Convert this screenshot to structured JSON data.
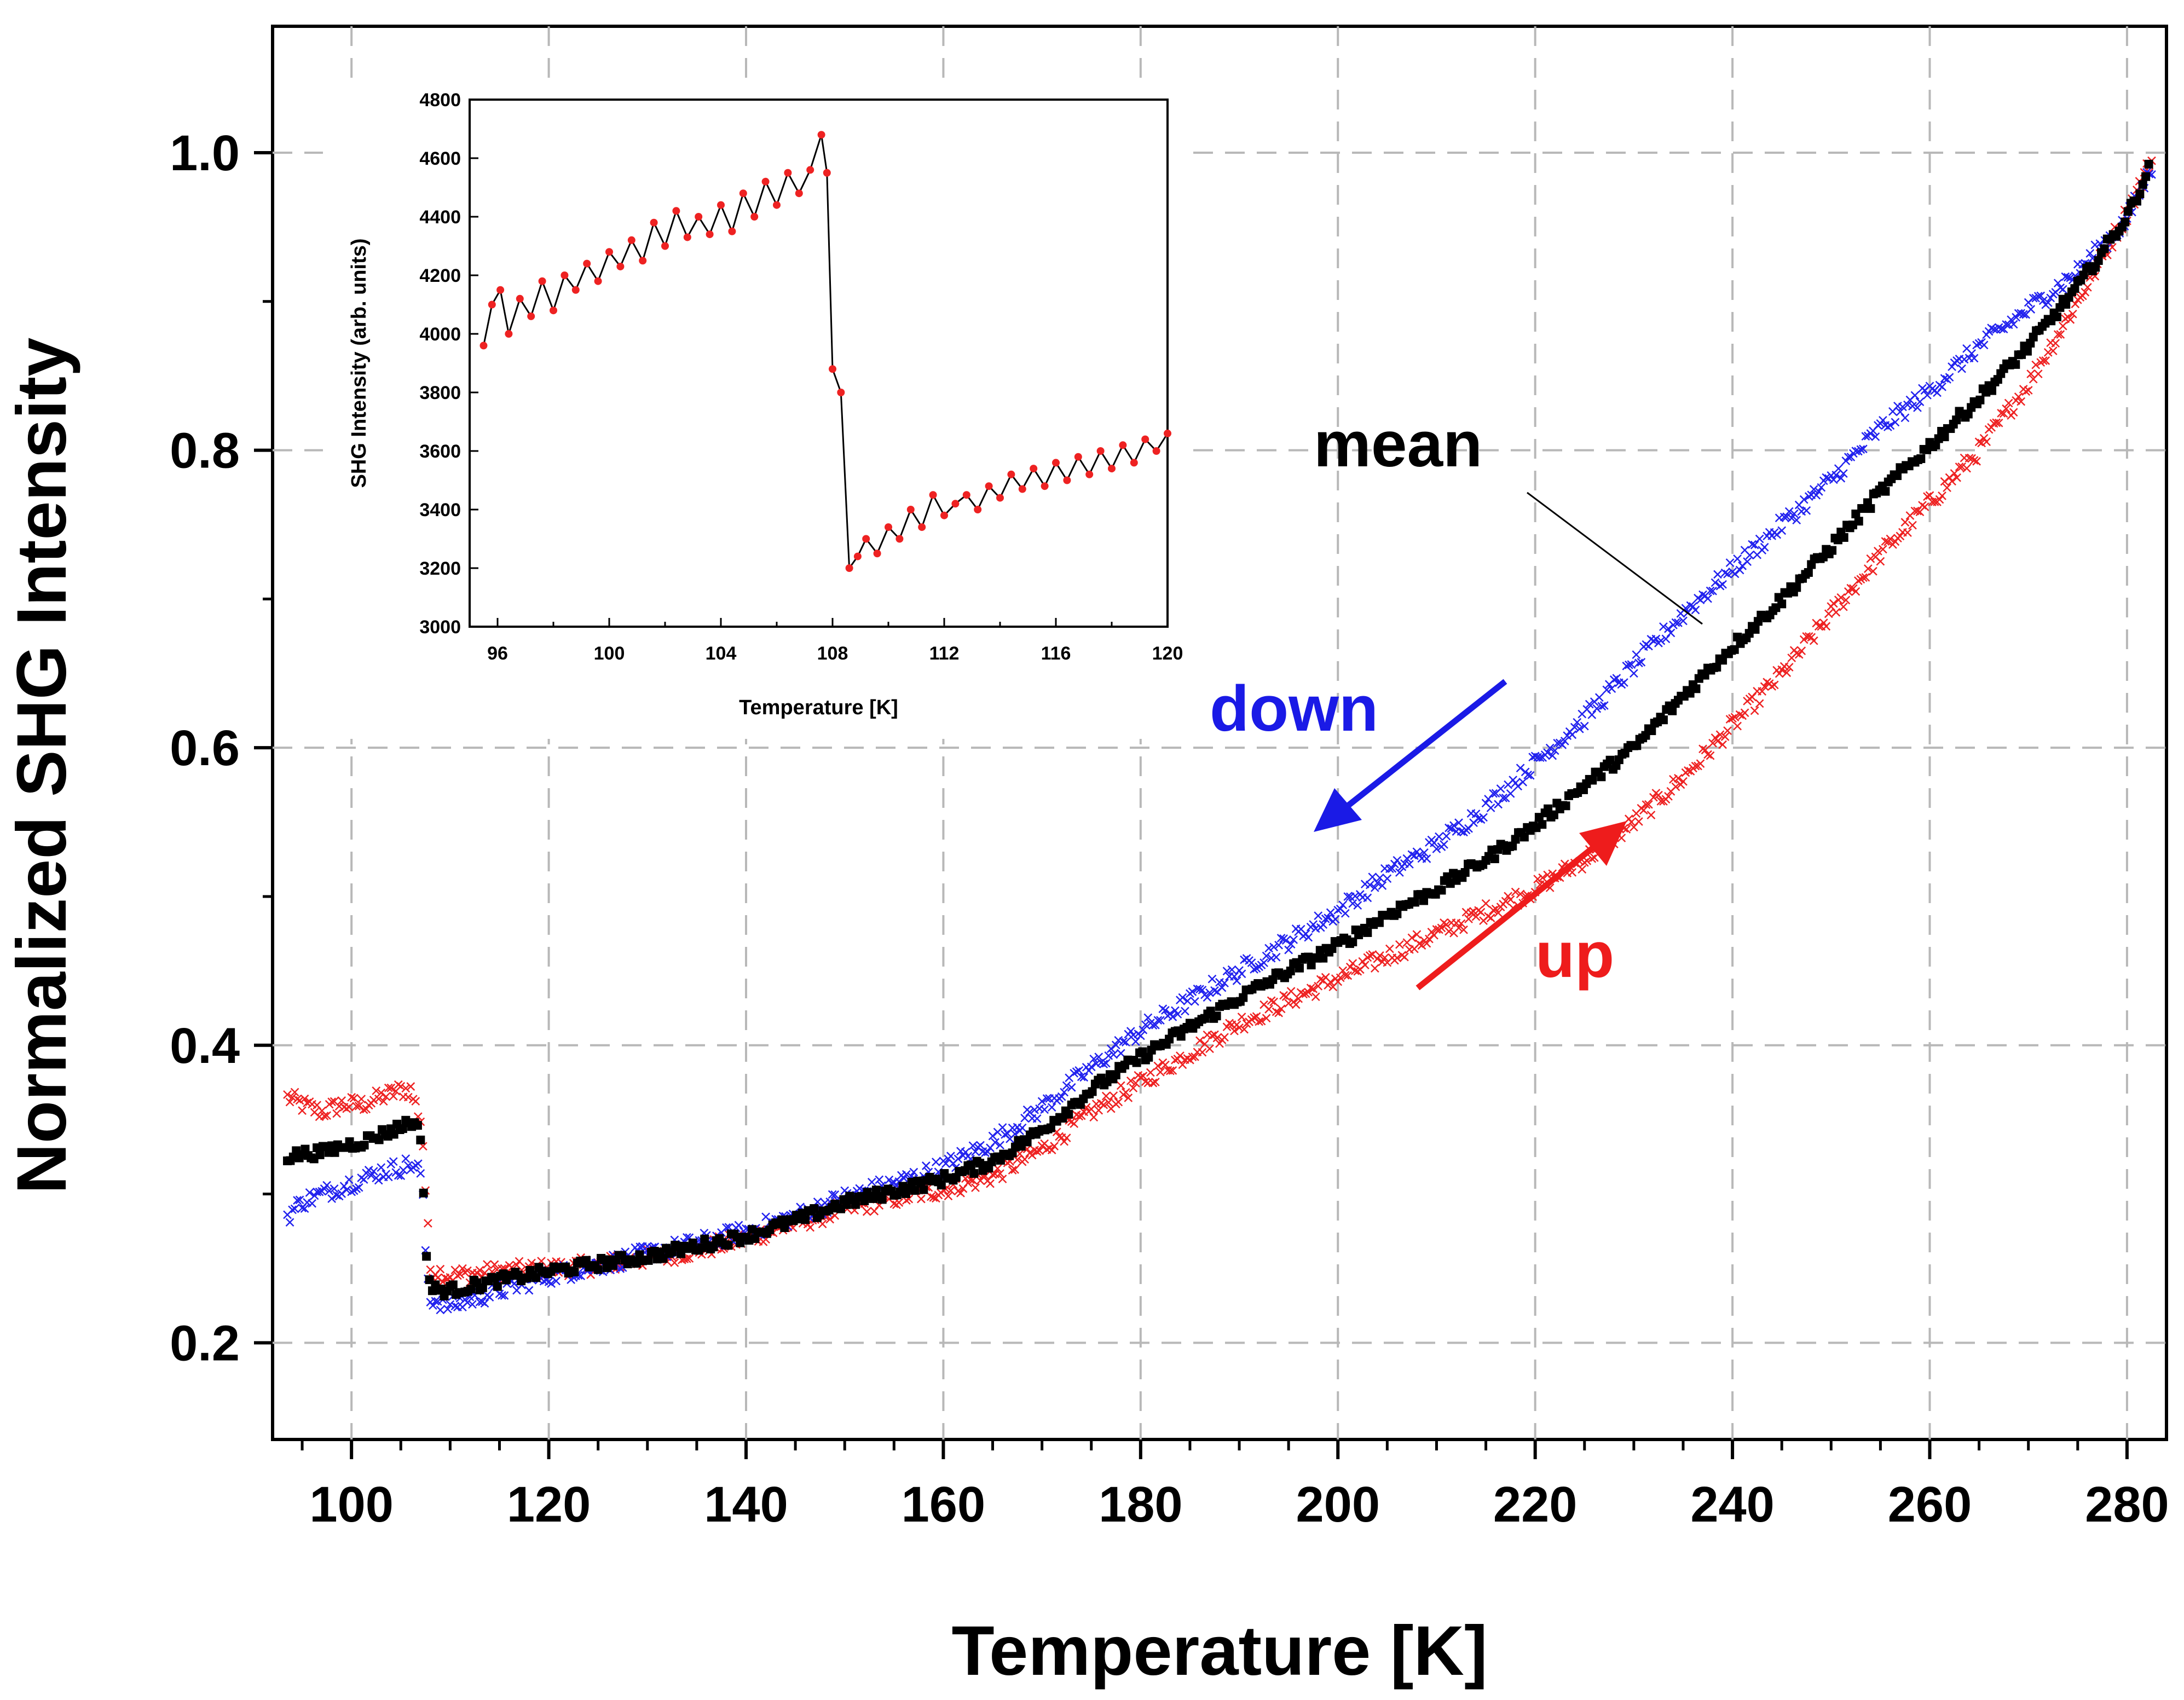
{
  "chart_data": [
    {
      "type": "scatter",
      "name": "main",
      "title": "",
      "xlabel": "Temperature [K]",
      "ylabel": "Normalized SHG Intensity",
      "xlim": [
        92,
        284
      ],
      "ylim": [
        0.135,
        1.085
      ],
      "xticks": [
        100,
        120,
        140,
        160,
        180,
        200,
        220,
        240,
        260,
        280
      ],
      "yticks": [
        0.2,
        0.4,
        0.6,
        0.8,
        1.0
      ],
      "xtick_labels": [
        "100",
        "120",
        "140",
        "160",
        "180",
        "200",
        "220",
        "240",
        "260",
        "280"
      ],
      "ytick_labels": [
        "0.2",
        "0.4",
        "0.6",
        "0.8",
        "1.0"
      ],
      "grid": true,
      "series": [
        {
          "name": "up",
          "marker": "x",
          "color": "#ee2222",
          "x": [
            93.5,
            95,
            97,
            99,
            101,
            103,
            105,
            106,
            107,
            107.3,
            107.6,
            108,
            110,
            115,
            120,
            125,
            130,
            135,
            140,
            145,
            150,
            155,
            160,
            165,
            170,
            175,
            180,
            185,
            190,
            195,
            200,
            205,
            210,
            215,
            220,
            225,
            230,
            235,
            240,
            245,
            250,
            255,
            260,
            265,
            270,
            275,
            280,
            282.5
          ],
          "y": [
            0.365,
            0.36,
            0.355,
            0.36,
            0.36,
            0.365,
            0.37,
            0.37,
            0.35,
            0.33,
            0.29,
            0.25,
            0.245,
            0.248,
            0.25,
            0.252,
            0.257,
            0.262,
            0.27,
            0.28,
            0.29,
            0.297,
            0.303,
            0.312,
            0.33,
            0.355,
            0.375,
            0.395,
            0.415,
            0.43,
            0.445,
            0.46,
            0.475,
            0.49,
            0.505,
            0.525,
            0.55,
            0.58,
            0.615,
            0.65,
            0.69,
            0.73,
            0.765,
            0.8,
            0.845,
            0.9,
            0.96,
            0.995
          ]
        },
        {
          "name": "down",
          "marker": "x",
          "color": "#2222ee",
          "x": [
            93.5,
            95,
            97,
            99,
            101,
            103,
            105,
            106,
            107,
            107.3,
            107.6,
            108,
            110,
            115,
            120,
            125,
            130,
            135,
            140,
            145,
            150,
            155,
            160,
            165,
            170,
            175,
            180,
            185,
            190,
            195,
            200,
            205,
            210,
            215,
            220,
            225,
            230,
            235,
            240,
            245,
            250,
            255,
            260,
            265,
            270,
            275,
            280,
            282.5
          ],
          "y": [
            0.285,
            0.295,
            0.3,
            0.305,
            0.31,
            0.315,
            0.318,
            0.32,
            0.315,
            0.29,
            0.25,
            0.23,
            0.225,
            0.235,
            0.245,
            0.252,
            0.26,
            0.267,
            0.275,
            0.285,
            0.298,
            0.307,
            0.318,
            0.335,
            0.358,
            0.385,
            0.41,
            0.43,
            0.45,
            0.47,
            0.49,
            0.515,
            0.535,
            0.56,
            0.59,
            0.62,
            0.655,
            0.69,
            0.72,
            0.75,
            0.78,
            0.815,
            0.84,
            0.87,
            0.895,
            0.92,
            0.955,
            0.99
          ]
        },
        {
          "name": "mean",
          "marker": "square",
          "color": "#000000",
          "x": [
            93.5,
            95,
            97,
            99,
            101,
            103,
            105,
            106,
            107,
            107.3,
            107.6,
            108,
            110,
            115,
            120,
            125,
            130,
            135,
            140,
            145,
            150,
            155,
            160,
            165,
            170,
            175,
            180,
            185,
            190,
            195,
            200,
            205,
            210,
            215,
            220,
            225,
            230,
            235,
            240,
            245,
            250,
            255,
            260,
            265,
            270,
            275,
            280,
            282.5
          ],
          "y": [
            0.325,
            0.327,
            0.328,
            0.332,
            0.335,
            0.34,
            0.345,
            0.35,
            0.34,
            0.3,
            0.26,
            0.236,
            0.235,
            0.242,
            0.248,
            0.253,
            0.258,
            0.265,
            0.272,
            0.282,
            0.294,
            0.302,
            0.31,
            0.322,
            0.343,
            0.37,
            0.392,
            0.412,
            0.432,
            0.45,
            0.467,
            0.488,
            0.505,
            0.525,
            0.548,
            0.575,
            0.6,
            0.635,
            0.668,
            0.7,
            0.735,
            0.772,
            0.803,
            0.835,
            0.87,
            0.91,
            0.957,
            0.993
          ]
        }
      ],
      "annotations": [
        {
          "text": "mean",
          "color": "#000000"
        },
        {
          "text": "down",
          "color": "#1a1ae6"
        },
        {
          "text": "up",
          "color": "#ee1c1c"
        }
      ]
    },
    {
      "type": "line",
      "name": "inset",
      "title": "",
      "xlabel": "Temperature [K]",
      "ylabel": "SHG Intensity (arb. units)",
      "xlim": [
        95,
        120
      ],
      "ylim": [
        3000,
        4800
      ],
      "xticks": [
        96,
        100,
        104,
        108,
        112,
        116,
        120
      ],
      "yticks": [
        3000,
        3200,
        3400,
        3600,
        3800,
        4000,
        4200,
        4400,
        4600,
        4800
      ],
      "xtick_labels": [
        "96",
        "100",
        "104",
        "108",
        "112",
        "116",
        "120"
      ],
      "ytick_labels": [
        "3000",
        "3200",
        "3400",
        "3600",
        "3800",
        "4000",
        "4200",
        "4400",
        "4600",
        "4800"
      ],
      "grid": false,
      "series": [
        {
          "name": "SHG Intensity",
          "line_color": "#000000",
          "marker_color": "#ee2222",
          "x": [
            95.5,
            95.8,
            96.1,
            96.4,
            96.8,
            97.2,
            97.6,
            98.0,
            98.4,
            98.8,
            99.2,
            99.6,
            100.0,
            100.4,
            100.8,
            101.2,
            101.6,
            102.0,
            102.4,
            102.8,
            103.2,
            103.6,
            104.0,
            104.4,
            104.8,
            105.2,
            105.6,
            106.0,
            106.4,
            106.8,
            107.2,
            107.6,
            107.8,
            108.0,
            108.3,
            108.6,
            108.9,
            109.2,
            109.6,
            110.0,
            110.4,
            110.8,
            111.2,
            111.6,
            112.0,
            112.4,
            112.8,
            113.2,
            113.6,
            114.0,
            114.4,
            114.8,
            115.2,
            115.6,
            116.0,
            116.4,
            116.8,
            117.2,
            117.6,
            118.0,
            118.4,
            118.8,
            119.2,
            119.6,
            120.0
          ],
          "y": [
            3960,
            4100,
            4150,
            4000,
            4120,
            4060,
            4180,
            4080,
            4200,
            4150,
            4240,
            4180,
            4280,
            4230,
            4320,
            4250,
            4380,
            4300,
            4420,
            4330,
            4400,
            4340,
            4440,
            4350,
            4480,
            4400,
            4520,
            4440,
            4550,
            4480,
            4560,
            4680,
            4550,
            3880,
            3800,
            3200,
            3240,
            3300,
            3250,
            3340,
            3300,
            3400,
            3340,
            3450,
            3380,
            3420,
            3450,
            3400,
            3480,
            3440,
            3520,
            3470,
            3540,
            3480,
            3560,
            3500,
            3580,
            3520,
            3600,
            3540,
            3620,
            3560,
            3640,
            3600,
            3660
          ]
        }
      ]
    }
  ]
}
